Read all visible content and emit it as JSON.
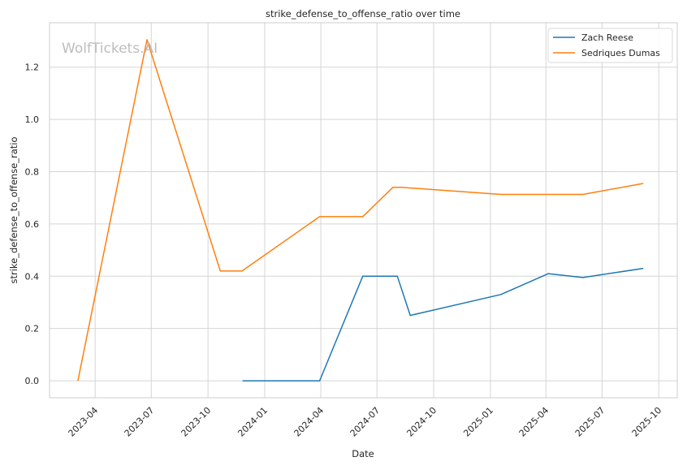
{
  "chart_data": {
    "type": "line",
    "title": "strike_defense_to_offense_ratio over time",
    "xlabel": "Date",
    "ylabel": "strike_defense_to_offense_ratio",
    "watermark": "WolfTickets.AI",
    "legend_position": "top-right",
    "grid": true,
    "x_axis_type": "date",
    "xlim": [
      "2023-01-17",
      "2025-10-31"
    ],
    "ylim": [
      -0.065,
      1.37
    ],
    "x_ticks": [
      {
        "date": "2023-04-01",
        "label": "2023-04"
      },
      {
        "date": "2023-07-01",
        "label": "2023-07"
      },
      {
        "date": "2023-10-01",
        "label": "2023-10"
      },
      {
        "date": "2024-01-01",
        "label": "2024-01"
      },
      {
        "date": "2024-04-01",
        "label": "2024-04"
      },
      {
        "date": "2024-07-01",
        "label": "2024-07"
      },
      {
        "date": "2024-10-01",
        "label": "2024-10"
      },
      {
        "date": "2025-01-01",
        "label": "2025-01"
      },
      {
        "date": "2025-04-01",
        "label": "2025-04"
      },
      {
        "date": "2025-07-01",
        "label": "2025-07"
      },
      {
        "date": "2025-10-01",
        "label": "2025-10"
      }
    ],
    "y_ticks": [
      {
        "value": 0.0,
        "label": "0.0"
      },
      {
        "value": 0.2,
        "label": "0.2"
      },
      {
        "value": 0.4,
        "label": "0.4"
      },
      {
        "value": 0.6,
        "label": "0.6"
      },
      {
        "value": 0.8,
        "label": "0.8"
      },
      {
        "value": 1.0,
        "label": "1.0"
      },
      {
        "value": 1.2,
        "label": "1.2"
      }
    ],
    "series": [
      {
        "name": "Zach Reese",
        "color": "#1f77b4",
        "points": [
          {
            "x": "2023-11-26",
            "y": 0.0
          },
          {
            "x": "2024-03-30",
            "y": 0.0
          },
          {
            "x": "2024-06-08",
            "y": 0.4
          },
          {
            "x": "2024-08-03",
            "y": 0.4
          },
          {
            "x": "2024-08-24",
            "y": 0.25
          },
          {
            "x": "2025-01-18",
            "y": 0.33
          },
          {
            "x": "2025-04-05",
            "y": 0.41
          },
          {
            "x": "2025-05-31",
            "y": 0.395
          },
          {
            "x": "2025-09-06",
            "y": 0.43
          }
        ]
      },
      {
        "name": "Sedriques Dumas",
        "color": "#ff7f0e",
        "points": [
          {
            "x": "2023-03-04",
            "y": 0.0
          },
          {
            "x": "2023-06-24",
            "y": 1.305
          },
          {
            "x": "2023-10-21",
            "y": 0.42
          },
          {
            "x": "2023-11-25",
            "y": 0.42
          },
          {
            "x": "2024-03-30",
            "y": 0.628
          },
          {
            "x": "2024-06-08",
            "y": 0.628
          },
          {
            "x": "2024-07-27",
            "y": 0.74
          },
          {
            "x": "2024-08-10",
            "y": 0.74
          },
          {
            "x": "2025-01-18",
            "y": 0.713
          },
          {
            "x": "2025-05-31",
            "y": 0.713
          },
          {
            "x": "2025-09-06",
            "y": 0.755
          }
        ]
      }
    ]
  }
}
